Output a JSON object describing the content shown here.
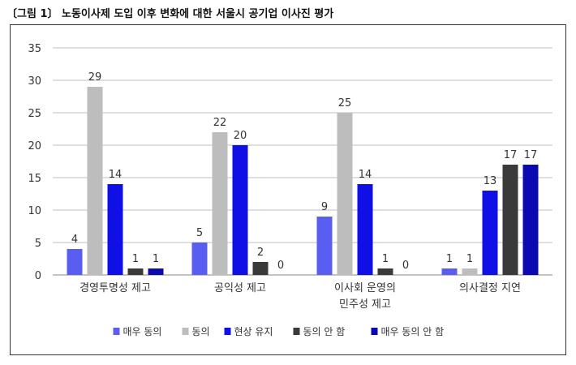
{
  "caption": "〔그림 1〕 노동이사제 도입 이후 변화에 대한 서울시 공기업 이사진 평가",
  "chart_data": {
    "type": "bar",
    "title": "",
    "xlabel": "",
    "ylabel": "",
    "ylim": [
      0,
      35
    ],
    "yticks": [
      0,
      5,
      10,
      15,
      20,
      25,
      30,
      35
    ],
    "grid": true,
    "legend_position": "bottom",
    "categories": [
      [
        "경영투명성 제고"
      ],
      [
        "공익성 제고"
      ],
      [
        "이사회 운영의",
        "민주성 제고"
      ],
      [
        "의사결정 지연"
      ]
    ],
    "series": [
      {
        "name": "매우 동의",
        "color": "#5a5ef0",
        "values": [
          4,
          5,
          9,
          1
        ]
      },
      {
        "name": "동의",
        "color": "#bdbdbd",
        "values": [
          29,
          22,
          25,
          1
        ]
      },
      {
        "name": "현상 유지",
        "color": "#1010e6",
        "values": [
          14,
          20,
          14,
          13
        ]
      },
      {
        "name": "동의 안 함",
        "color": "#3a3a3a",
        "values": [
          1,
          2,
          1,
          17
        ]
      },
      {
        "name": "매우 동의 안 함",
        "color": "#0a0ab0",
        "values": [
          1,
          0,
          0,
          17
        ]
      }
    ]
  }
}
